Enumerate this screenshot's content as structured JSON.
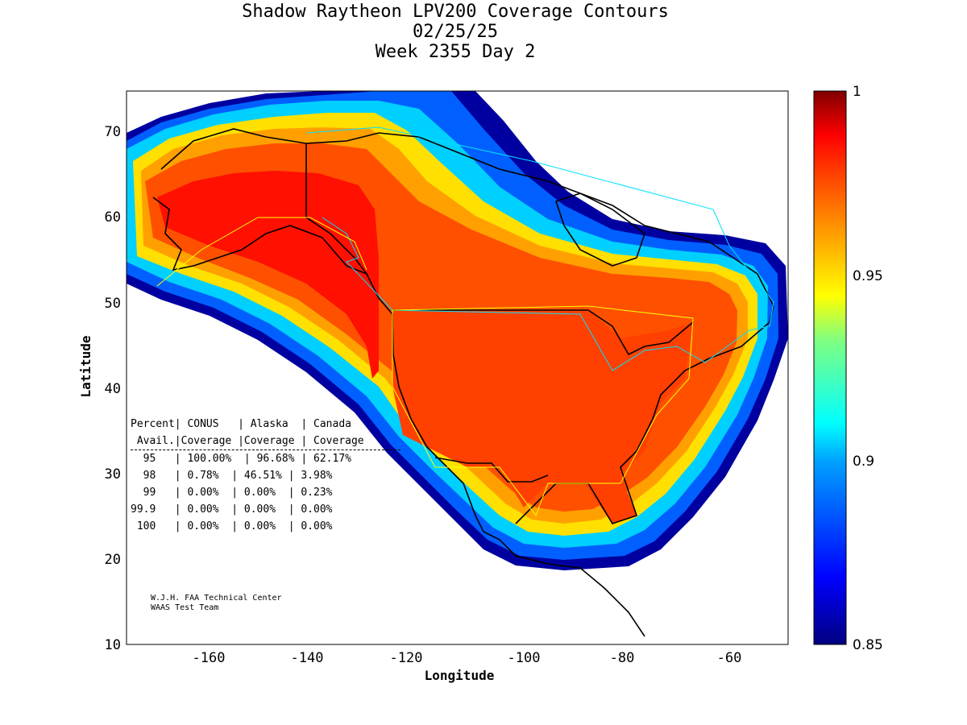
{
  "title": {
    "line1": "Shadow Raytheon LPV200 Coverage Contours",
    "line2": "02/25/25",
    "line3": "Week 2355 Day 2"
  },
  "chart_data": {
    "type": "heatmap",
    "title": "Shadow Raytheon LPV200 Coverage Contours",
    "xlabel": "Longitude",
    "ylabel": "Latitude",
    "xlim": [
      -176,
      -49
    ],
    "ylim": [
      10,
      75
    ],
    "xticks": [
      "-160",
      "-140",
      "-120",
      "-100",
      "-80",
      "-60"
    ],
    "yticks": [
      "10",
      "20",
      "30",
      "40",
      "50",
      "60",
      "70"
    ],
    "colorbar": {
      "min": 0.85,
      "max": 1,
      "ticks": [
        "0.85",
        "0.9",
        "0.95",
        "1"
      ]
    }
  },
  "table": {
    "header1": [
      "Percent",
      "CONUS",
      "Alaska",
      "Canada"
    ],
    "header2": [
      "Avail.",
      "Coverage",
      "Coverage",
      "Coverage"
    ],
    "rows": [
      [
        "95",
        "100.00%",
        "96.68%",
        "62.17%"
      ],
      [
        "98",
        "0.78%",
        "46.51%",
        "3.98%"
      ],
      [
        "99",
        "0.00%",
        "0.00%",
        "0.23%"
      ],
      [
        "99.9",
        "0.00%",
        "0.00%",
        "0.00%"
      ],
      [
        "100",
        "0.00%",
        "0.00%",
        "0.00%"
      ]
    ]
  },
  "footer": {
    "line1": "W.J.H. FAA Technical Center",
    "line2": "WAAS Test Team"
  }
}
